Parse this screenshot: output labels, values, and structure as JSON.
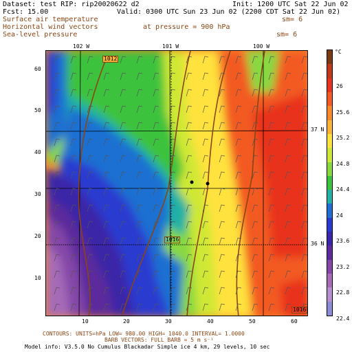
{
  "header": {
    "line1_left": "Dataset: test  RIP: rip20020622 d2",
    "line1_right": "Init: 1200 UTC Sat 22 Jun 02",
    "line2_left": "Fcst:   15.00",
    "line2_right": "Valid: 0300 UTC Sun 23 Jun 02 (2200 CDT Sat 22 Jun 02)",
    "field1": "Surface air temperature",
    "field1_sm": "sm= 6",
    "field2": "Horizontal wind vectors",
    "field2_pressure": "at pressure =  900 hPa",
    "field3": "Sea-level pressure",
    "field3_sm": "sm= 6"
  },
  "map": {
    "lon_labels": [
      "102 W",
      "101 W",
      "100 W"
    ],
    "lat_labels": [
      "37 N",
      "36 N"
    ],
    "x_ticks": [
      "10",
      "20",
      "30",
      "40",
      "50",
      "60"
    ],
    "y_ticks": [
      "60",
      "50",
      "40",
      "30",
      "20",
      "10"
    ],
    "isobar_labels": [
      "1012",
      "1016",
      "1016"
    ]
  },
  "colorbar": {
    "unit": "°C",
    "labels": [
      "26",
      "25.6",
      "25.2",
      "24.8",
      "24.4",
      "24",
      "23.6",
      "23.2",
      "22.8",
      "22.4"
    ],
    "colors": [
      "#7a3a12",
      "#c03a1a",
      "#e8331f",
      "#f35a24",
      "#f98a2a",
      "#fbb436",
      "#ffe23c",
      "#cfe836",
      "#88d842",
      "#3cc23c",
      "#21b1a5",
      "#1f6fd1",
      "#2a3ad0",
      "#3a26a8",
      "#5c2a9c",
      "#8447a8",
      "#a56ab8",
      "#b78fd0",
      "#8a8ad6"
    ]
  },
  "footer": {
    "line1": "CONTOURS: UNITS=hPa  LOW=  980.00    HIGH= 1040.0    INTERVAL=   1.0000",
    "line2": "BARB VECTORS:  FULL BARB = 5 m s⁻¹",
    "line3": "Model info: V3.5.0 No Cumulus Blackadar  Simple ice    4 km,  29 levels,   10 sec"
  }
}
